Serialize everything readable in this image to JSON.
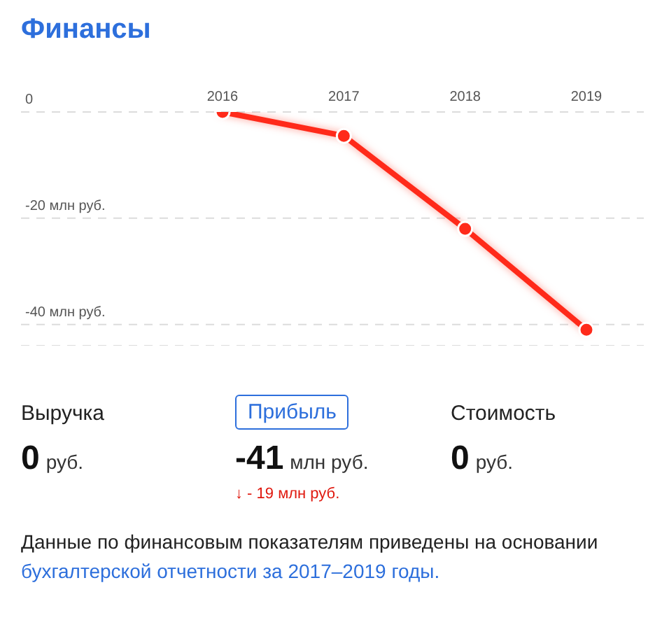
{
  "chart_data": {
    "type": "line",
    "title": "Финансы",
    "categories": [
      "2016",
      "2017",
      "2018",
      "2019"
    ],
    "series": [
      {
        "color": "#ff2a1a",
        "values": [
          0,
          -4.5,
          -22,
          -41
        ]
      }
    ],
    "ylim": [
      -44,
      0
    ],
    "yticks": [
      {
        "value": 0,
        "label": "0"
      },
      {
        "value": -20,
        "label": "-20 млн руб."
      },
      {
        "value": -40,
        "label": "-40 млн руб."
      }
    ],
    "grid": "y",
    "marker": "circle",
    "line_style": "solid",
    "legend": false,
    "annotations": [
      "Выручка",
      "Прибыль",
      "Стоимость",
      "0",
      "руб.",
      "-41",
      "млн руб.",
      "0",
      "руб.",
      "↓ - 19 млн руб.",
      "Данные по финансовым показателям приведены на основании",
      "бухгалтерской отчетности за 2017–2019 годы."
    ]
  }
}
